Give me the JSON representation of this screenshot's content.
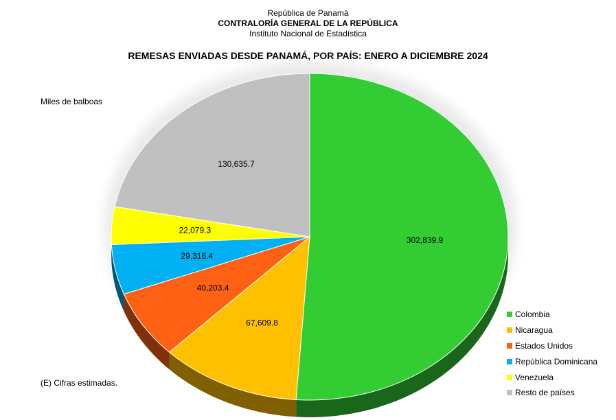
{
  "header": {
    "line1": "República de Panamá",
    "line2": "CONTRALORÍA GENERAL DE LA REPÚBLICA",
    "line3": "Instituto Nacional de Estadística"
  },
  "footnote": "(E) Cifras estimadas.",
  "chart_data": {
    "type": "pie",
    "title": "REMESAS ENVIADAS DESDE PANAMÁ, POR PAÍS: ENERO A DICIEMBRE 2024",
    "unit_label": "Miles de balboas",
    "legend_position": "bottom-right",
    "slices": [
      {
        "label": "Colombia",
        "value": 302839.9,
        "display": "302,839.9",
        "color": "#33cc33"
      },
      {
        "label": "Nicaragua",
        "value": 67609.8,
        "display": "67,609.8",
        "color": "#ffc000"
      },
      {
        "label": "Estados Unidos",
        "value": 40203.4,
        "display": "40,203.4",
        "color": "#ff6114"
      },
      {
        "label": "República Dominicana",
        "value": 29316.4,
        "display": "29,316.4",
        "color": "#00b0f0"
      },
      {
        "label": "Venezuela",
        "value": 22079.3,
        "display": "22,079.3",
        "color": "#ffff00"
      },
      {
        "label": "Resto de países",
        "value": 130635.7,
        "display": "130,635.7",
        "color": "#c0c0c0"
      }
    ]
  }
}
